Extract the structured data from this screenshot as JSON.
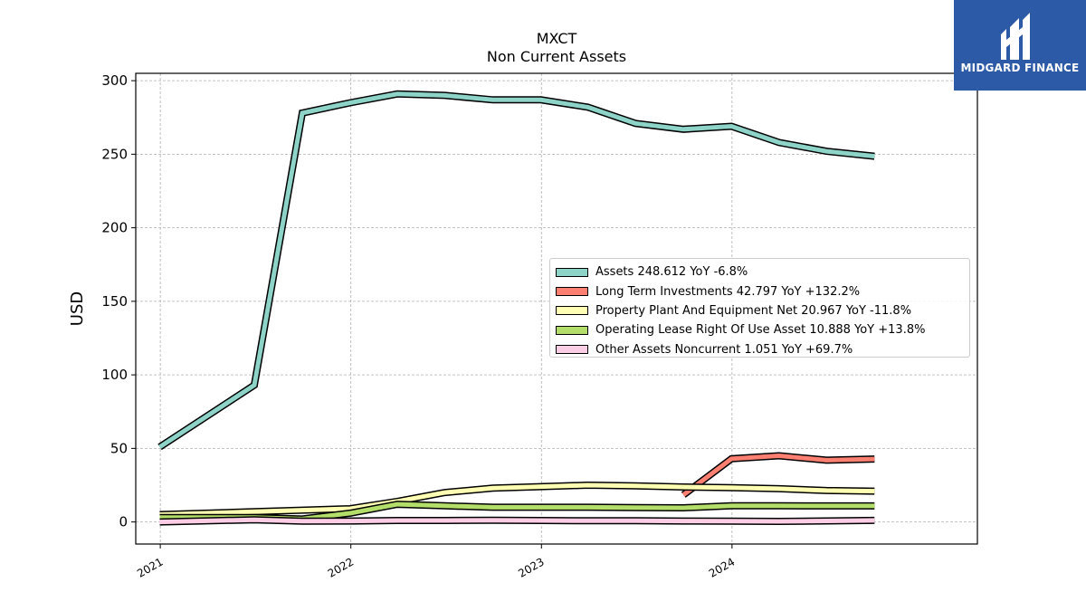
{
  "brand": {
    "name": "MIDGARD FINANCE",
    "color": "#2c5aa6"
  },
  "chart_data": {
    "type": "line",
    "title": "MXCT",
    "subtitle": "Non Current  Assets",
    "xlabel": "",
    "ylabel": "USD",
    "ylim": [
      -15,
      305
    ],
    "yticks": [
      0,
      50,
      100,
      150,
      200,
      250,
      300
    ],
    "xlim": [
      "2020-11-15",
      "2025-04-15"
    ],
    "xticks": [
      "2021",
      "2022",
      "2023",
      "2024"
    ],
    "grid": true,
    "legend_position": "center-right",
    "x": [
      "2020-12-31",
      "2021-06-30",
      "2021-09-30",
      "2021-12-31",
      "2022-03-31",
      "2022-06-30",
      "2022-09-30",
      "2022-12-31",
      "2023-03-31",
      "2023-06-30",
      "2023-09-30",
      "2023-12-31",
      "2024-03-31",
      "2024-06-30",
      "2024-09-30"
    ],
    "series": [
      {
        "name": "Assets",
        "legend": "Assets  248.612 YoY -6.8%",
        "color": "#8dd3c7",
        "values": [
          51,
          93,
          278,
          285,
          291,
          290,
          287,
          287,
          282,
          271,
          267,
          269,
          258,
          252,
          248.612
        ]
      },
      {
        "name": "Long Term Investments",
        "legend": "Long Term Investments  42.797 YoY +132.2%",
        "color": "#fb8072",
        "values": [
          null,
          null,
          null,
          null,
          null,
          null,
          null,
          null,
          null,
          null,
          18.4,
          43,
          45,
          42,
          42.797
        ]
      },
      {
        "name": "Property Plant And Equipment Net",
        "legend": "Property Plant And Equipment Net  20.967 YoY -11.8%",
        "color": "#ffffb3",
        "values": [
          5,
          7,
          8,
          9,
          14,
          20,
          23,
          24,
          25,
          24.5,
          23.8,
          23.3,
          22.6,
          21.4,
          20.967
        ]
      },
      {
        "name": "Operating Lease Right Of Use Asset",
        "legend": "Operating Lease Right Of Use Asset  10.888 YoY +13.8%",
        "color": "#b3de69",
        "values": [
          3,
          3,
          2,
          6,
          12,
          11,
          10,
          10,
          10,
          9.8,
          9.6,
          11,
          11,
          10.9,
          10.888
        ]
      },
      {
        "name": "Other Assets Noncurrent",
        "legend": "Other Assets Noncurrent  1.051 YoY +69.7%",
        "color": "#fccde5",
        "values": [
          0,
          1.5,
          0.5,
          0.6,
          1,
          1,
          1.2,
          1,
          0.8,
          0.9,
          0.6,
          0.5,
          0.4,
          0.7,
          1.051
        ]
      }
    ]
  }
}
